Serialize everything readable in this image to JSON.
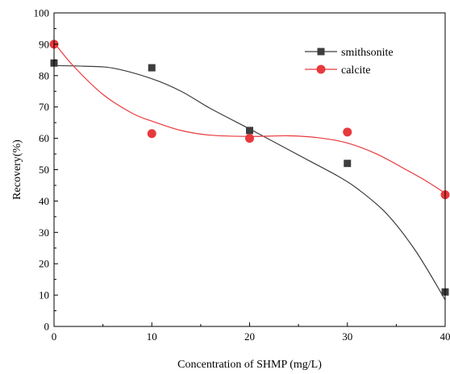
{
  "chart_data": {
    "type": "scatter",
    "xlabel": "Concentration of SHMP (mg/L)",
    "ylabel": "Recovery(%)",
    "xlim": [
      0,
      40
    ],
    "ylim": [
      0,
      100
    ],
    "xticks": [
      0,
      10,
      20,
      30,
      40
    ],
    "yticks": [
      0,
      10,
      20,
      30,
      40,
      50,
      60,
      70,
      80,
      90,
      100
    ],
    "grid": false,
    "legend_position": "top-right",
    "series": [
      {
        "name": "smithsonite",
        "marker": "square",
        "color": "#3d3d3d",
        "x": [
          0,
          10,
          20,
          30,
          40
        ],
        "y": [
          84,
          82.5,
          62.5,
          52,
          11
        ],
        "fit_curve": [
          [
            0,
            83.2
          ],
          [
            3,
            83
          ],
          [
            6,
            82.4
          ],
          [
            10,
            79
          ],
          [
            13,
            75
          ],
          [
            16,
            69.5
          ],
          [
            20,
            63
          ],
          [
            23,
            58
          ],
          [
            26,
            53
          ],
          [
            29,
            48
          ],
          [
            31,
            44
          ],
          [
            34,
            36
          ],
          [
            37,
            24
          ],
          [
            40,
            8.5
          ]
        ]
      },
      {
        "name": "calcite",
        "marker": "circle",
        "color": "#e8393c",
        "x": [
          0,
          10,
          20,
          30,
          40
        ],
        "y": [
          90,
          61.5,
          60,
          62,
          42
        ],
        "fit_curve": [
          [
            0,
            90.5
          ],
          [
            2,
            83
          ],
          [
            5,
            74
          ],
          [
            8,
            68
          ],
          [
            10,
            65.5
          ],
          [
            13,
            62.5
          ],
          [
            16,
            61
          ],
          [
            20,
            60.6
          ],
          [
            24,
            60.8
          ],
          [
            27,
            60.2
          ],
          [
            30,
            58.5
          ],
          [
            33,
            55
          ],
          [
            36,
            50
          ],
          [
            38,
            46.5
          ],
          [
            40,
            42.5
          ]
        ]
      }
    ]
  }
}
